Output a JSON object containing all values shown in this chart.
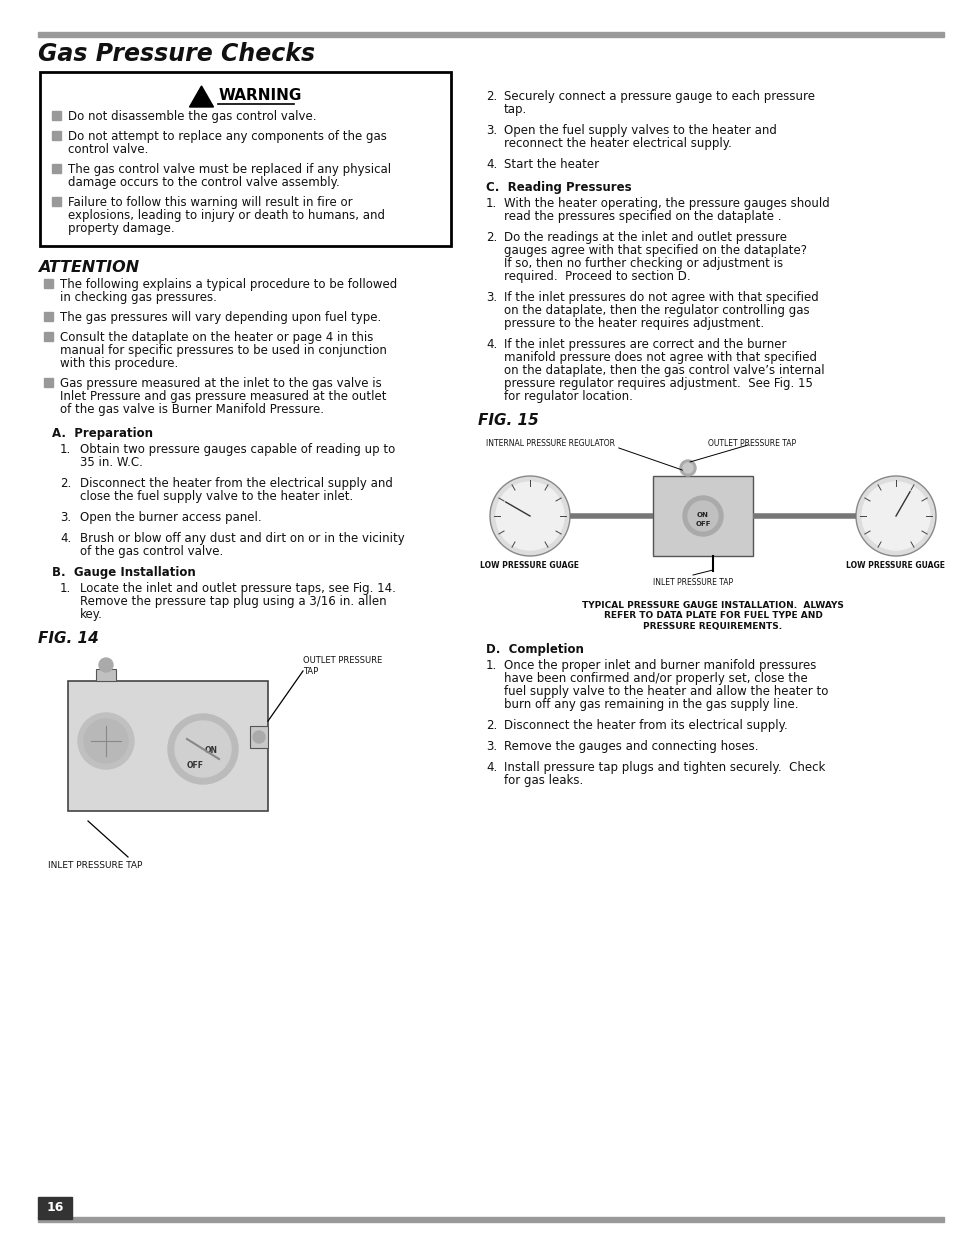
{
  "title": "Gas Pressure Checks",
  "bg_color": "#ffffff",
  "page_number": "16",
  "warning_items": [
    "Do not disassemble the gas control valve.",
    "Do not attempt to replace any components of the gas\ncontrol valve.",
    "The gas control valve must be replaced if any physical\ndamage occurs to the control valve assembly.",
    "Failure to follow this warning will result in fire or\nexplosions, leading to injury or death to humans, and\nproperty damage."
  ],
  "attention_items": [
    "The following explains a typical procedure to be followed\nin checking gas pressures.",
    "The gas pressures will vary depending upon fuel type.",
    "Consult the dataplate on the heater or page 4 in this\nmanual for specific pressures to be used in conjunction\nwith this procedure.",
    "Gas pressure measured at the inlet to the gas valve is\nInlet Pressure and gas pressure measured at the outlet\nof the gas valve is Burner Manifold Pressure."
  ],
  "section_a_items": [
    "Obtain two pressure gauges capable of reading up to\n35 in. W.C.",
    "Disconnect the heater from the electrical supply and\nclose the fuel supply valve to the heater inlet.",
    "Open the burner access panel.",
    "Brush or blow off any dust and dirt on or in the vicinity\nof the gas control valve."
  ],
  "section_b_items": [
    "Locate the inlet and outlet pressure taps, see Fig. 14.\nRemove the pressure tap plug using a 3/16 in. allen\nkey.",
    "Securely connect a pressure gauge to each pressure\ntap.",
    "Open the fuel supply valves to the heater and\nreconnect the heater electrical supply.",
    "Start the heater"
  ],
  "section_c_items": [
    "With the heater operating, the pressure gauges should\nread the pressures specified on the dataplate .",
    "Do the readings at the inlet and outlet pressure\ngauges agree with that specified on the dataplate?\nIf so, then no further checking or adjustment is\nrequired.  Proceed to section D.",
    "If the inlet pressures do not agree with that specified\non the dataplate, then the regulator controlling gas\npressure to the heater requires adjustment.",
    "If the inlet pressures are correct and the burner\nmanifold pressure does not agree with that specified\non the dataplate, then the gas control valve’s internal\npressure regulator requires adjustment.  See Fig. 15\nfor regulator location."
  ],
  "fig15_caption": "TYPICAL PRESSURE GAUGE INSTALLATION.  ALWAYS\nREFER TO DATA PLATE FOR FUEL TYPE AND\nPRESSURE REQUIREMENTS.",
  "section_d_items": [
    "Once the proper inlet and burner manifold pressures\nhave been confirmed and/or properly set, close the\nfuel supply valve to the heater and allow the heater to\nburn off any gas remaining in the gas supply line.",
    "Disconnect the heater from its electrical supply.",
    "Remove the gauges and connecting hoses.",
    "Install pressure tap plugs and tighten securely.  Check\nfor gas leaks."
  ],
  "rule_color": "#999999",
  "box_edge_color": "#000000",
  "bullet_color": "#999999",
  "page_bg": "#ffffff",
  "dark_bar": "#333333"
}
